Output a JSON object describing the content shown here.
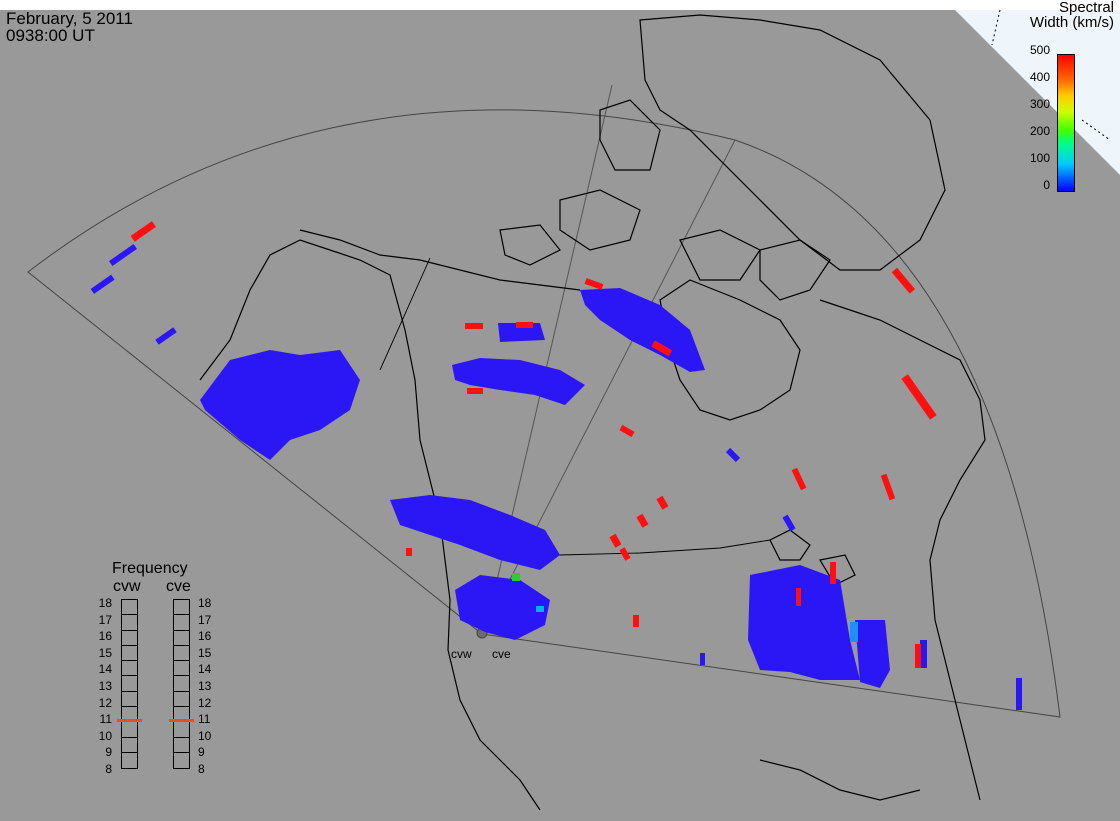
{
  "title": {
    "date": "February, 5 2011",
    "time": "0938:00 UT"
  },
  "colorbar": {
    "title_line1": "Spectral",
    "title_line2": "Width (km/s)",
    "ticks": [
      "500",
      "400",
      "300",
      "200",
      "100",
      "0"
    ],
    "colors": [
      "#0000ff",
      "#00ccff",
      "#44ff00",
      "#ffcc00",
      "#ff0000"
    ]
  },
  "frequency": {
    "title": "Frequency",
    "radars": [
      "cvw",
      "cve"
    ],
    "scale": [
      "18",
      "17",
      "16",
      "15",
      "14",
      "13",
      "12",
      "11",
      "10",
      "9",
      "8"
    ],
    "selected_mhz": [
      10.8,
      10.8
    ],
    "marker_color": "#e8501c"
  },
  "sites": [
    "cvw",
    "cve"
  ],
  "colors": {
    "background": "#999999",
    "scatter_low": "#2b17f5",
    "scatter_high": "#ff1010"
  }
}
